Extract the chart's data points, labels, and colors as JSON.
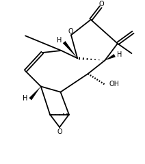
{
  "bg_color": "#ffffff",
  "line_color": "#000000",
  "lw": 1.3,
  "fig_width": 2.12,
  "fig_height": 2.4,
  "dpi": 100,
  "xlim": [
    0,
    10
  ],
  "ylim": [
    0,
    11.3
  ]
}
